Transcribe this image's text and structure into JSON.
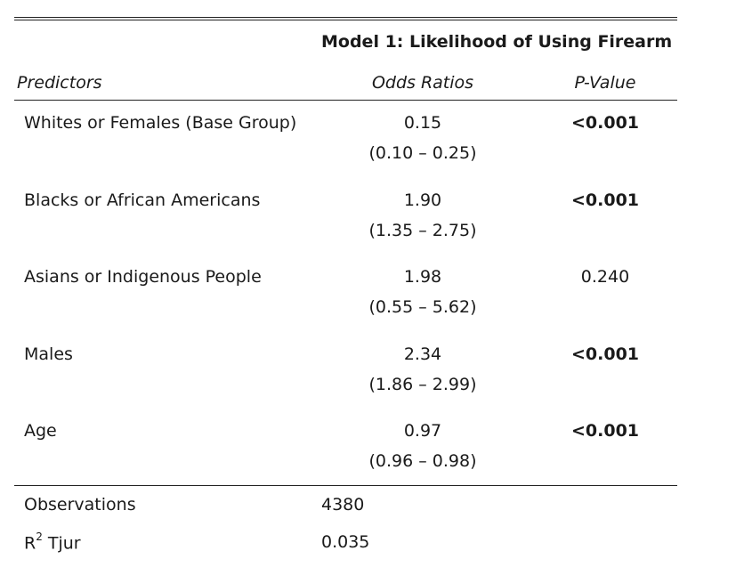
{
  "table": {
    "title": "Model 1: Likelihood of Using Firearm",
    "headers": {
      "predictors": "Predictors",
      "odds_ratios": "Odds Ratios",
      "p_value": "P-Value"
    },
    "rows": [
      {
        "label": "Whites or Females (Base Group)",
        "or": "0.15",
        "ci": "(0.10 – 0.25)",
        "p": "<0.001",
        "p_bold": true
      },
      {
        "label": "Blacks or African Americans",
        "or": "1.90",
        "ci": "(1.35 – 2.75)",
        "p": "<0.001",
        "p_bold": true
      },
      {
        "label": "Asians or Indigenous People",
        "or": "1.98",
        "ci": "(0.55 – 5.62)",
        "p": "0.240",
        "p_bold": false
      },
      {
        "label": "Males",
        "or": "2.34",
        "ci": "(1.86 – 2.99)",
        "p": "<0.001",
        "p_bold": true
      },
      {
        "label": "Age",
        "or": "0.97",
        "ci": "(0.96 – 0.98)",
        "p": "<0.001",
        "p_bold": true
      }
    ],
    "footer": {
      "observations_label": "Observations",
      "observations_value": "4380",
      "r2_label_base": "R",
      "r2_label_sup": "2",
      "r2_label_rest": " Tjur",
      "r2_value": "0.035"
    }
  }
}
